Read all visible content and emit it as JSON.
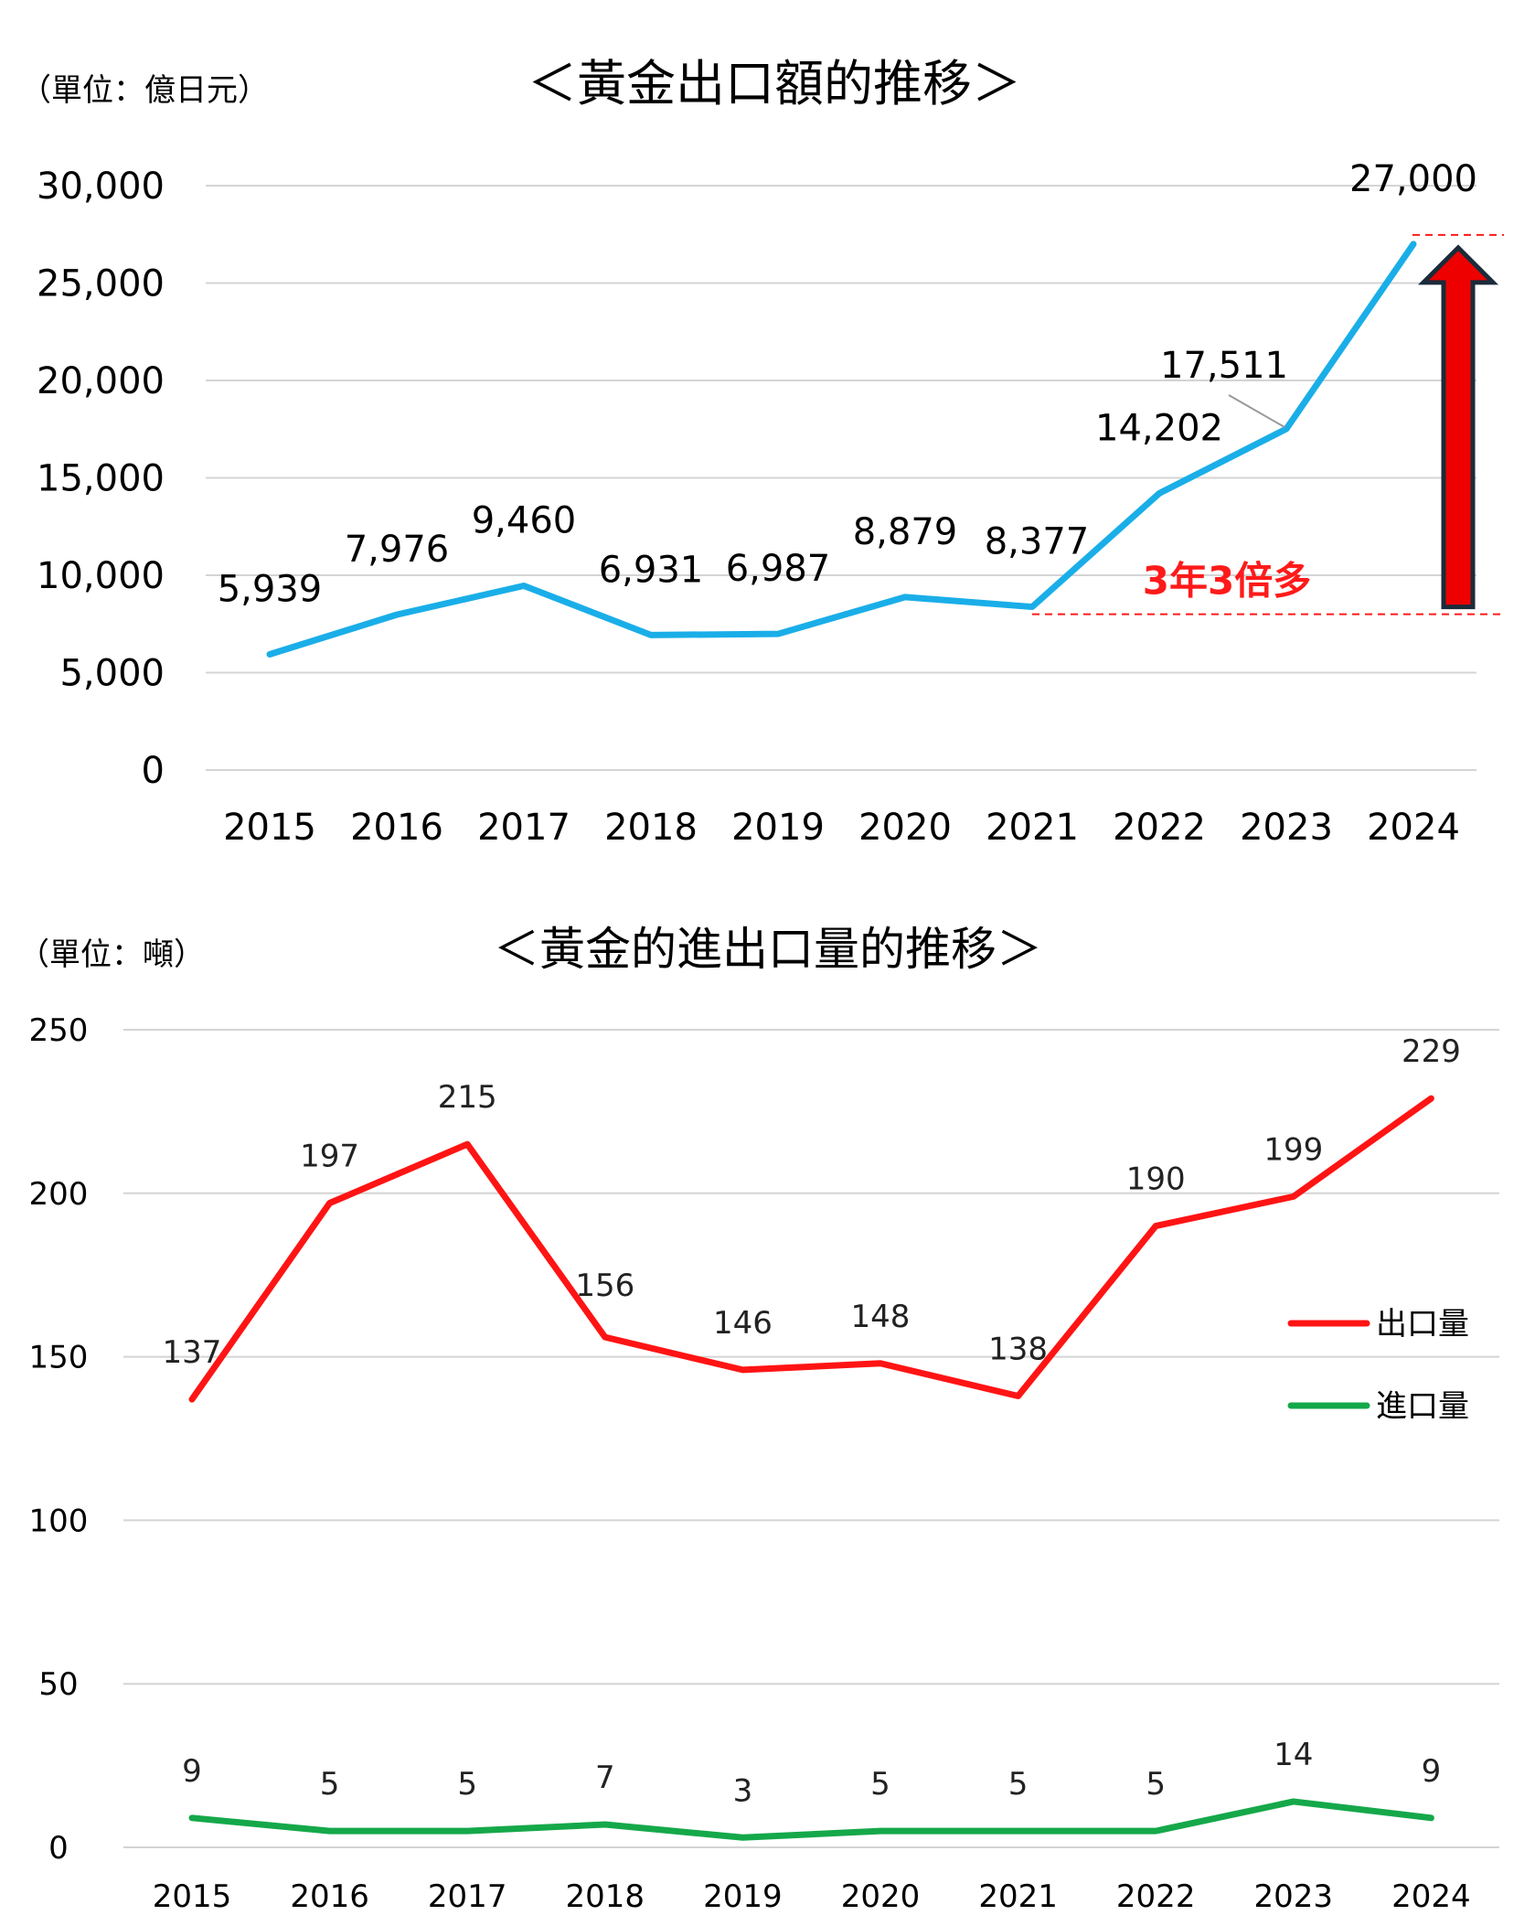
{
  "chart_data": [
    {
      "type": "line",
      "unit_label": "（單位：億日元）",
      "title": "＜黃金出口額的推移＞",
      "categories": [
        "2015",
        "2016",
        "2017",
        "2018",
        "2019",
        "2020",
        "2021",
        "2022",
        "2023",
        "2024"
      ],
      "series": [
        {
          "values": [
            5939,
            7976,
            9460,
            6931,
            6987,
            8879,
            8377,
            14202,
            17511,
            27000
          ],
          "labels": [
            "5,939",
            "7,976",
            "9,460",
            "6,931",
            "6,987",
            "8,879",
            "8,377",
            "14,202",
            "17,511",
            "27,000"
          ],
          "color": "#1aaee8"
        }
      ],
      "ylim": [
        0,
        30000
      ],
      "yticks": [
        0,
        5000,
        10000,
        15000,
        20000,
        25000,
        30000
      ],
      "ytick_labels": [
        "0",
        "5,000",
        "10,000",
        "15,000",
        "20,000",
        "25,000",
        "30,000"
      ],
      "grid": true,
      "annotation": {
        "text": "3年3倍多",
        "color": "#ff1a1a",
        "from_value": 8377,
        "to_value": 27000
      }
    },
    {
      "type": "line",
      "unit_label": "（單位：噸）",
      "title": "＜黃金的進出口量的推移＞",
      "categories": [
        "2015",
        "2016",
        "2017",
        "2018",
        "2019",
        "2020",
        "2021",
        "2022",
        "2023",
        "2024"
      ],
      "series": [
        {
          "name": "出口量",
          "values": [
            137,
            197,
            215,
            156,
            146,
            148,
            138,
            190,
            199,
            229
          ],
          "color": "#ff1414"
        },
        {
          "name": "進口量",
          "values": [
            9,
            5,
            5,
            7,
            3,
            5,
            5,
            5,
            14,
            9
          ],
          "color": "#15a84a"
        }
      ],
      "ylim": [
        0,
        250
      ],
      "yticks": [
        0,
        50,
        100,
        150,
        200,
        250
      ],
      "ytick_labels": [
        "0",
        "50",
        "100",
        "150",
        "200",
        "250"
      ],
      "grid": true,
      "legend": "right"
    }
  ]
}
